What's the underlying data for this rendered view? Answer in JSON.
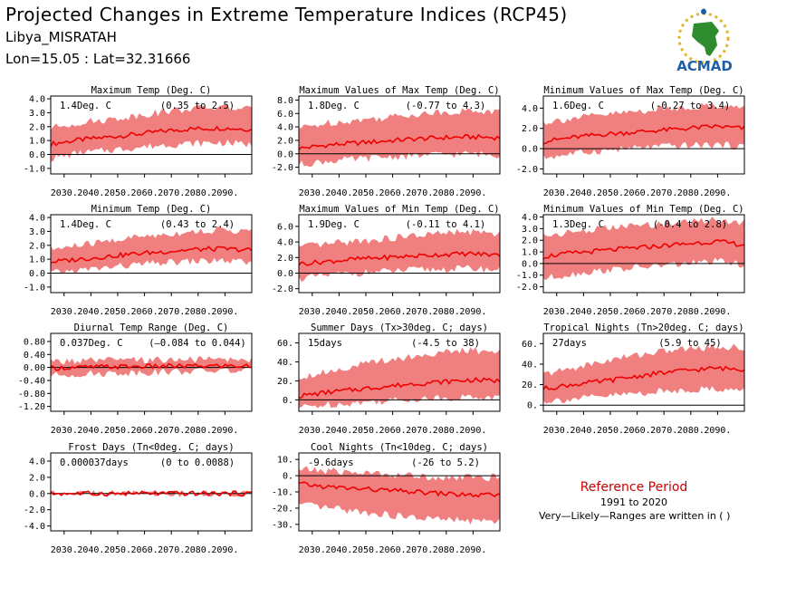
{
  "header": {
    "title": "Projected Changes in Extreme Temperature Indices (RCP45)",
    "location": "Libya_MISRATAH",
    "coords": "Lon=15.05 : Lat=32.31666"
  },
  "logo": {
    "text": "ACMAD"
  },
  "reference": {
    "title": "Reference Period",
    "years": "1991 to 2020",
    "note": "Very—Likely—Ranges are written in ( )"
  },
  "colors": {
    "band": "#f08080",
    "line": "#ee0000",
    "zero_line": "#000000",
    "logo_text": "#1f5fa8"
  },
  "chart_data": [
    {
      "type": "area",
      "title": "Maximum Temp (Deg. C)",
      "stat": "1.4Deg. C",
      "range": "(0.35 to 2.5)",
      "x_ticks": [
        "2030.",
        "2040.",
        "2050.",
        "2060.",
        "2070.",
        "2080.",
        "2090."
      ],
      "y_ticks": [
        "4.0",
        "3.0",
        "2.0",
        "1.0",
        "0.0",
        "-1.0"
      ],
      "ylim": [
        -1.4,
        4.2
      ],
      "series": [
        {
          "values": [
            0.75,
            1.05,
            1.25,
            1.45,
            1.7,
            1.85,
            1.9,
            1.8
          ],
          "low": [
            -0.3,
            0.1,
            0.3,
            0.5,
            0.7,
            0.8,
            0.85,
            0.7
          ],
          "high": [
            1.9,
            2.3,
            2.5,
            2.8,
            3.1,
            3.3,
            3.4,
            3.2
          ]
        }
      ]
    },
    {
      "type": "area",
      "title": "Maximum Values of Max Temp (Deg. C)",
      "stat": "1.8Deg. C",
      "range": "(-0.77 to 4.3)",
      "x_ticks": [
        "2030.",
        "2040.",
        "2050.",
        "2060.",
        "2070.",
        "2080.",
        "2090."
      ],
      "y_ticks": [
        "8.0",
        "6.0",
        "4.0",
        "2.0",
        "0.0",
        "-2.0"
      ],
      "ylim": [
        -3.0,
        8.6
      ],
      "series": [
        {
          "values": [
            0.8,
            1.3,
            1.6,
            1.9,
            2.2,
            2.4,
            2.5,
            2.4
          ],
          "low": [
            -1.6,
            -1.1,
            -0.8,
            -0.5,
            -0.3,
            -0.1,
            0.0,
            -0.2
          ],
          "high": [
            3.8,
            4.6,
            5.0,
            5.4,
            5.9,
            6.2,
            6.4,
            6.2
          ]
        }
      ]
    },
    {
      "type": "area",
      "title": "Minimum Values of Max Temp (Deg. C)",
      "stat": "1.6Deg. C",
      "range": "(-0.27 to 3.4)",
      "x_ticks": [
        "2030.",
        "2040.",
        "2050.",
        "2060.",
        "2070.",
        "2080.",
        "2090."
      ],
      "y_ticks": [
        "4.0",
        "2.0",
        "0.0",
        "-2.0"
      ],
      "ylim": [
        -2.5,
        5.2
      ],
      "series": [
        {
          "values": [
            0.7,
            1.1,
            1.4,
            1.6,
            1.8,
            2.0,
            2.2,
            2.0
          ],
          "low": [
            -0.9,
            -0.5,
            -0.2,
            0.0,
            0.2,
            0.3,
            0.4,
            0.2
          ],
          "high": [
            2.6,
            3.0,
            3.3,
            3.6,
            3.9,
            4.1,
            4.3,
            4.0
          ]
        }
      ]
    },
    {
      "type": "area",
      "title": "Minimum Temp (Deg. C)",
      "stat": "1.4Deg. C",
      "range": "(0.43 to 2.4)",
      "x_ticks": [
        "2030.",
        "2040.",
        "2050.",
        "2060.",
        "2070.",
        "2080.",
        "2090."
      ],
      "y_ticks": [
        "4.0",
        "3.0",
        "2.0",
        "1.0",
        "0.0",
        "-1.0"
      ],
      "ylim": [
        -1.4,
        4.2
      ],
      "series": [
        {
          "values": [
            0.8,
            1.0,
            1.2,
            1.4,
            1.55,
            1.7,
            1.75,
            1.65
          ],
          "low": [
            0.0,
            0.2,
            0.4,
            0.6,
            0.75,
            0.85,
            0.9,
            0.7
          ],
          "high": [
            1.7,
            2.0,
            2.3,
            2.6,
            2.8,
            3.0,
            3.1,
            3.0
          ]
        }
      ]
    },
    {
      "type": "area",
      "title": "Maximum Values of Min Temp (Deg. C)",
      "stat": "1.9Deg. C",
      "range": "(-0.11 to 4.1)",
      "x_ticks": [
        "2030.",
        "2040.",
        "2050.",
        "2060.",
        "2070.",
        "2080.",
        "2090."
      ],
      "y_ticks": [
        "6.0",
        "4.0",
        "2.0",
        "0.0",
        "-2.0"
      ],
      "ylim": [
        -2.5,
        7.5
      ],
      "series": [
        {
          "values": [
            1.2,
            1.5,
            1.8,
            2.0,
            2.2,
            2.4,
            2.5,
            2.3
          ],
          "low": [
            -0.7,
            -0.3,
            0.0,
            0.2,
            0.4,
            0.5,
            0.6,
            0.4
          ],
          "high": [
            3.3,
            3.7,
            4.1,
            4.4,
            4.8,
            5.1,
            5.3,
            5.0
          ]
        }
      ]
    },
    {
      "type": "area",
      "title": "Minimum Values of Min Temp (Deg. C)",
      "stat": "1.3Deg. C",
      "range": "(-0.4 to 2.8)",
      "x_ticks": [
        "2030.",
        "2040.",
        "2050.",
        "2060.",
        "2070.",
        "2080.",
        "2090."
      ],
      "y_ticks": [
        "4.0",
        "3.0",
        "2.0",
        "1.0",
        "0.0",
        "-1.0",
        "-2.0"
      ],
      "ylim": [
        -2.5,
        4.2
      ],
      "series": [
        {
          "values": [
            0.6,
            0.9,
            1.1,
            1.3,
            1.5,
            1.7,
            1.9,
            1.6
          ],
          "low": [
            -1.3,
            -0.9,
            -0.6,
            -0.4,
            -0.2,
            0.0,
            0.2,
            -0.1
          ],
          "high": [
            2.4,
            2.7,
            3.0,
            3.2,
            3.4,
            3.6,
            3.8,
            3.5
          ]
        }
      ]
    },
    {
      "type": "area",
      "title": "Diurnal Temp Range (Deg. C)",
      "stat": "0.037Deg. C",
      "range": "(–0.084 to 0.044)",
      "x_ticks": [
        "2030.",
        "2040.",
        "2050.",
        "2060.",
        "2070.",
        "2080.",
        "2090."
      ],
      "y_ticks": [
        "0.80",
        "0.40",
        "0.00",
        "-0.40",
        "-0.80",
        "-1.20"
      ],
      "ylim": [
        -1.35,
        1.05
      ],
      "series": [
        {
          "values": [
            -0.02,
            0.0,
            0.02,
            0.03,
            0.04,
            0.04,
            0.05,
            0.04
          ],
          "low": [
            -0.25,
            -0.2,
            -0.18,
            -0.15,
            -0.13,
            -0.12,
            -0.1,
            -0.12
          ],
          "high": [
            0.18,
            0.2,
            0.22,
            0.22,
            0.24,
            0.24,
            0.25,
            0.24
          ]
        }
      ]
    },
    {
      "type": "area",
      "title": "Summer Days (Tx>30deg. C; days)",
      "stat": "15days",
      "range": "(-4.5 to 38)",
      "x_ticks": [
        "2030.",
        "2040.",
        "2050.",
        "2060.",
        "2070.",
        "2080.",
        "2090."
      ],
      "y_ticks": [
        "60.",
        "40.",
        "20.",
        "0."
      ],
      "ylim": [
        -12,
        70
      ],
      "series": [
        {
          "values": [
            4,
            8,
            11,
            14,
            17,
            19,
            21,
            20
          ],
          "low": [
            -8,
            -5,
            -3,
            -1,
            1,
            2,
            3,
            2
          ],
          "high": [
            24,
            30,
            36,
            42,
            46,
            50,
            52,
            50
          ]
        }
      ]
    },
    {
      "type": "area",
      "title": "Tropical Nights (Tn>20deg. C; days)",
      "stat": "27days",
      "range": "(5.9 to 45)",
      "x_ticks": [
        "2030.",
        "2040.",
        "2050.",
        "2060.",
        "2070.",
        "2080.",
        "2090."
      ],
      "y_ticks": [
        "60.",
        "40.",
        "20.",
        "0."
      ],
      "ylim": [
        -6,
        70
      ],
      "series": [
        {
          "values": [
            16,
            20,
            23,
            27,
            31,
            34,
            36,
            35
          ],
          "low": [
            4,
            6,
            8,
            11,
            13,
            15,
            16,
            14
          ],
          "high": [
            30,
            36,
            42,
            48,
            52,
            55,
            57,
            56
          ]
        }
      ]
    },
    {
      "type": "area",
      "title": "Frost Days (Tn<0deg. C; days)",
      "stat": "0.000037days",
      "range": "(0 to 0.0088)",
      "x_ticks": [
        "2030.",
        "2040.",
        "2050.",
        "2060.",
        "2070.",
        "2080.",
        "2090."
      ],
      "y_ticks": [
        "4.0",
        "2.0",
        "0.0",
        "-2.0",
        "-4.0"
      ],
      "ylim": [
        -4.6,
        5.0
      ],
      "series": [
        {
          "values": [
            0,
            0,
            0,
            0,
            0,
            0,
            0,
            0
          ],
          "low": [
            0,
            0,
            0,
            0,
            0,
            0,
            0,
            0
          ],
          "high": [
            0,
            0.05,
            0,
            0,
            0,
            0,
            0,
            0
          ]
        }
      ]
    },
    {
      "type": "area",
      "title": "Cool Nights (Tn<10deg. C; days)",
      "stat": "-9.6days",
      "range": "(-26 to 5.2)",
      "x_ticks": [
        "2030.",
        "2040.",
        "2050.",
        "2060.",
        "2070.",
        "2080.",
        "2090."
      ],
      "y_ticks": [
        "10.",
        "0.",
        "-10.",
        "-20.",
        "-30."
      ],
      "ylim": [
        -34,
        14
      ],
      "series": [
        {
          "values": [
            -5,
            -7,
            -8,
            -9,
            -10,
            -11,
            -12,
            -12
          ],
          "low": [
            -18,
            -20,
            -22,
            -24,
            -26,
            -27,
            -28,
            -28
          ],
          "high": [
            4,
            3,
            2,
            1,
            0,
            -1,
            -1,
            -1
          ]
        }
      ]
    }
  ]
}
